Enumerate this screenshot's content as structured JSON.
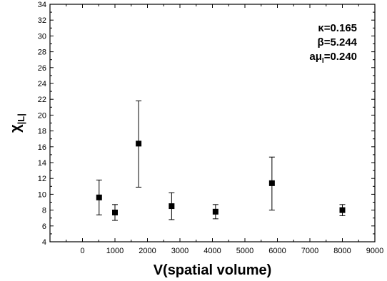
{
  "chart_data": {
    "type": "scatter",
    "title": "",
    "xlabel": "V(spatial volume)",
    "ylabel": {
      "main": "χ",
      "sub": "|L|"
    },
    "xlim": [
      -1000,
      9000
    ],
    "ylim": [
      4,
      34
    ],
    "x_ticks": [
      0,
      1000,
      2000,
      3000,
      4000,
      5000,
      6000,
      7000,
      8000,
      9000
    ],
    "y_ticks": [
      4,
      6,
      8,
      10,
      12,
      14,
      16,
      18,
      20,
      22,
      24,
      26,
      28,
      30,
      32,
      34
    ],
    "x_tick_labels": [
      "0",
      "1000",
      "2000",
      "3000",
      "4000",
      "5000",
      "6000",
      "7000",
      "8000",
      "9000"
    ],
    "y_tick_labels": [
      "4",
      "6",
      "8",
      "10",
      "12",
      "14",
      "16",
      "18",
      "20",
      "22",
      "24",
      "26",
      "28",
      "30",
      "32",
      "34"
    ],
    "grid": false,
    "series": [
      {
        "marker": "square",
        "color": "#000000",
        "points": [
          {
            "x": 512,
            "y": 9.6,
            "err_low": 7.4,
            "err_high": 11.8
          },
          {
            "x": 1000,
            "y": 7.7,
            "err_low": 6.7,
            "err_high": 8.7
          },
          {
            "x": 1728,
            "y": 16.4,
            "err_low": 10.9,
            "err_high": 21.8
          },
          {
            "x": 2744,
            "y": 8.5,
            "err_low": 6.8,
            "err_high": 10.2
          },
          {
            "x": 4096,
            "y": 7.8,
            "err_low": 6.9,
            "err_high": 8.7
          },
          {
            "x": 5832,
            "y": 11.4,
            "err_low": 8.0,
            "err_high": 14.7
          },
          {
            "x": 8000,
            "y": 8.0,
            "err_low": 7.3,
            "err_high": 8.7
          }
        ]
      }
    ],
    "annotations": [
      {
        "greek": "κ",
        "value": "=0.165"
      },
      {
        "greek": "β",
        "value": "=5.244"
      },
      {
        "greek": "aμ",
        "sub": "I",
        "value": "=0.240"
      }
    ]
  }
}
